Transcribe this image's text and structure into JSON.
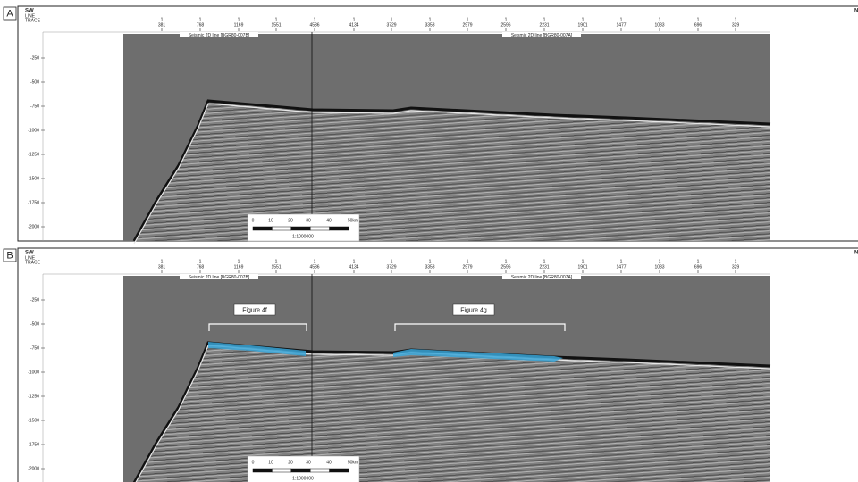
{
  "panels": [
    {
      "label": "A",
      "left": "SW",
      "right": "N",
      "line_label": "LINE",
      "trace_label": "TRACE",
      "lines": [
        1,
        1,
        1,
        1,
        1,
        1,
        1,
        1,
        1,
        1,
        1,
        1,
        1,
        1,
        1,
        1
      ],
      "traces": [
        381,
        768,
        1169,
        1551,
        4536,
        4134,
        3729,
        3353,
        2979,
        2596,
        2231,
        1901,
        1477,
        1083,
        696,
        329
      ],
      "depth_ticks": [
        -250,
        -500,
        -750,
        -1000,
        -1250,
        -1500,
        -1750,
        -2000
      ],
      "line_names": [
        "Seismic 2D line [BGR80-007B]",
        "Seismic 2D line [BGR80-007A]"
      ],
      "scale_ticks": [
        "0",
        "10",
        "20",
        "30",
        "40",
        "50km"
      ],
      "scale_ratio": "1:1000000"
    },
    {
      "label": "B",
      "left": "SW",
      "right": "N",
      "line_label": "LINE",
      "trace_label": "TRACE",
      "lines": [
        1,
        1,
        1,
        1,
        1,
        1,
        1,
        1,
        1,
        1,
        1,
        1,
        1,
        1,
        1,
        1
      ],
      "traces": [
        381,
        768,
        1169,
        1551,
        4536,
        4134,
        3729,
        3353,
        2979,
        2596,
        2231,
        1901,
        1477,
        1083,
        696,
        329
      ],
      "depth_ticks": [
        -250,
        -500,
        -750,
        -1000,
        -1250,
        -1500,
        -1750,
        -2000
      ],
      "line_names": [
        "Seismic 2D line [BGR80-007B]",
        "Seismic 2D line [BGR80-007A]"
      ],
      "scale_ticks": [
        "0",
        "10",
        "20",
        "30",
        "40",
        "50km"
      ],
      "scale_ratio": "1:1000000",
      "annotations": [
        "Figure 4f",
        "Figure 4g"
      ]
    }
  ]
}
